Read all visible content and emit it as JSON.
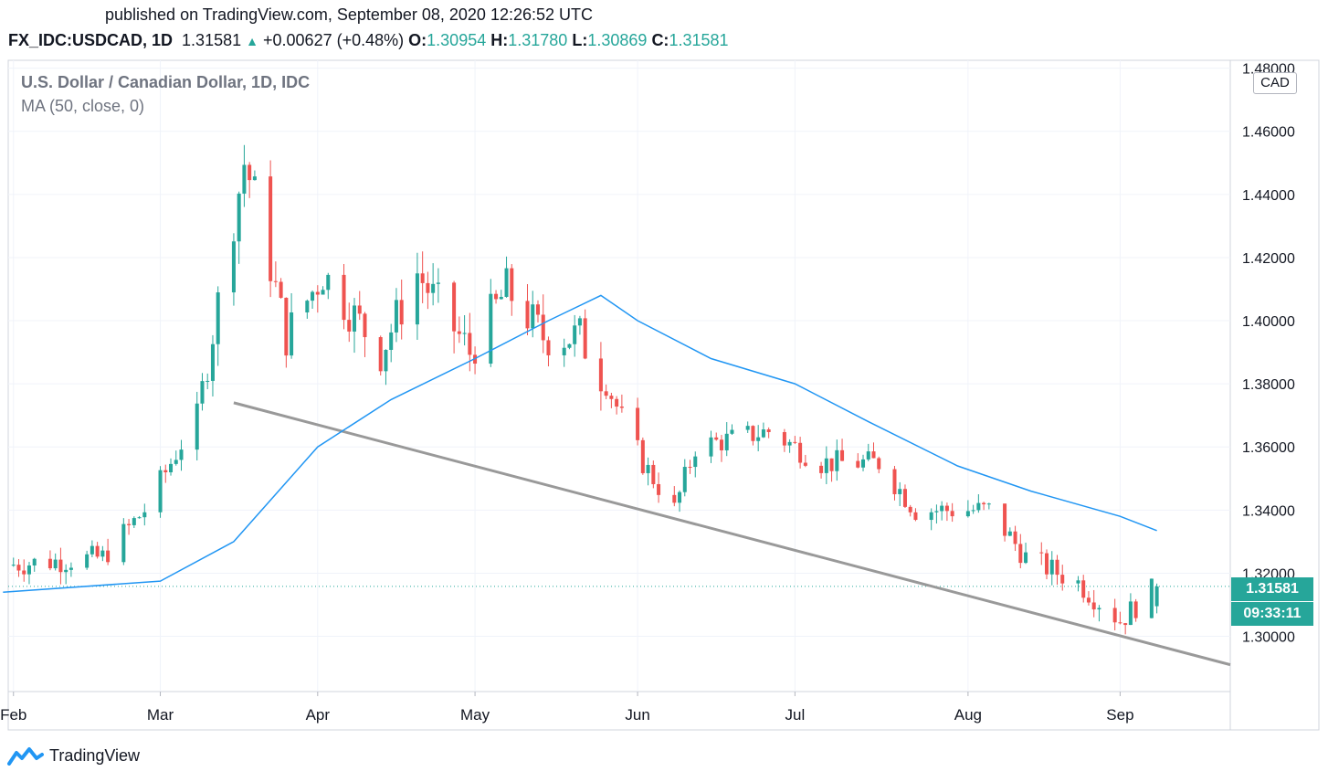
{
  "header": {
    "published": "published on TradingView.com, September 08, 2020 12:26:52 UTC",
    "symbol": "FX_IDC:USDCAD, 1D",
    "last": "1.31581",
    "change": "+0.00627 (+0.48%)",
    "o_label": "O:",
    "o_value": "1.30954",
    "h_label": "H:",
    "h_value": "1.31780",
    "l_label": "L:",
    "l_value": "1.30869",
    "c_label": "C:",
    "c_value": "1.31581",
    "up_arrow": "▲"
  },
  "legend": {
    "title": "U.S. Dollar / Canadian Dollar, 1D, IDC",
    "indicator": "MA (50, close, 0)"
  },
  "currency_badge": "CAD",
  "price_tag": {
    "price": "1.31581",
    "countdown": "09:33:11"
  },
  "brand": "TradingView",
  "colors": {
    "up": "#26a69a",
    "down": "#ef5350",
    "ma": "#2196f3",
    "trendline": "#999999",
    "grid": "#f0f3fa"
  },
  "chart_data": {
    "type": "candlestick",
    "y_ticks": [
      "1.30000",
      "1.32000",
      "1.34000",
      "1.36000",
      "1.38000",
      "1.40000",
      "1.42000",
      "1.44000",
      "1.46000",
      "1.48000"
    ],
    "ylim": [
      1.2825,
      1.4825
    ],
    "x_ticks": [
      "Feb",
      "Mar",
      "Apr",
      "May",
      "Jun",
      "Jul",
      "Aug",
      "Sep"
    ],
    "x_tick_dates": [
      "2020-02-03",
      "2020-03-02",
      "2020-04-01",
      "2020-05-01",
      "2020-06-01",
      "2020-07-01",
      "2020-08-03",
      "2020-09-01"
    ],
    "xlim": [
      "2020-02-02",
      "2020-09-22"
    ],
    "last_price": 1.31581,
    "series": [
      {
        "name": "USDCAD",
        "kind": "ohlc",
        "anchors": [
          {
            "date": "2020-02-01",
            "close": 1.3225
          },
          {
            "date": "2020-02-20",
            "close": 1.325
          },
          {
            "date": "2020-02-28",
            "close": 1.34
          },
          {
            "date": "2020-03-09",
            "close": 1.37
          },
          {
            "date": "2020-03-18",
            "close": 1.45
          },
          {
            "date": "2020-03-20",
            "close": 1.44
          },
          {
            "date": "2020-03-26",
            "close": 1.395
          },
          {
            "date": "2020-04-02",
            "close": 1.415
          },
          {
            "date": "2020-04-13",
            "close": 1.39
          },
          {
            "date": "2020-04-20",
            "close": 1.415
          },
          {
            "date": "2020-04-30",
            "close": 1.39
          },
          {
            "date": "2020-05-07",
            "close": 1.41
          },
          {
            "date": "2020-05-14",
            "close": 1.395
          },
          {
            "date": "2020-05-21",
            "close": 1.395
          },
          {
            "date": "2020-05-26",
            "close": 1.38
          },
          {
            "date": "2020-06-02",
            "close": 1.355
          },
          {
            "date": "2020-06-08",
            "close": 1.34
          },
          {
            "date": "2020-06-12",
            "close": 1.36
          },
          {
            "date": "2020-06-26",
            "close": 1.365
          },
          {
            "date": "2020-07-06",
            "close": 1.355
          },
          {
            "date": "2020-07-17",
            "close": 1.355
          },
          {
            "date": "2020-07-24",
            "close": 1.34
          },
          {
            "date": "2020-07-31",
            "close": 1.34
          },
          {
            "date": "2020-08-07",
            "close": 1.34
          },
          {
            "date": "2020-08-14",
            "close": 1.325
          },
          {
            "date": "2020-08-24",
            "close": 1.317
          },
          {
            "date": "2020-09-01",
            "close": 1.305
          },
          {
            "date": "2020-09-08",
            "close": 1.31581
          }
        ]
      },
      {
        "name": "MA (50, close, 0)",
        "kind": "line",
        "points": [
          {
            "date": "2020-02-01",
            "value": 1.314
          },
          {
            "date": "2020-03-02",
            "value": 1.3175
          },
          {
            "date": "2020-03-16",
            "value": 1.33
          },
          {
            "date": "2020-04-01",
            "value": 1.36
          },
          {
            "date": "2020-04-15",
            "value": 1.375
          },
          {
            "date": "2020-05-01",
            "value": 1.388
          },
          {
            "date": "2020-05-15",
            "value": 1.4
          },
          {
            "date": "2020-05-25",
            "value": 1.408
          },
          {
            "date": "2020-06-01",
            "value": 1.4
          },
          {
            "date": "2020-06-15",
            "value": 1.388
          },
          {
            "date": "2020-07-01",
            "value": 1.38
          },
          {
            "date": "2020-07-15",
            "value": 1.368
          },
          {
            "date": "2020-08-01",
            "value": 1.354
          },
          {
            "date": "2020-08-15",
            "value": 1.346
          },
          {
            "date": "2020-09-01",
            "value": 1.338
          },
          {
            "date": "2020-09-08",
            "value": 1.3335
          }
        ]
      },
      {
        "name": "trendline",
        "kind": "line",
        "points": [
          {
            "date": "2020-03-16",
            "value": 1.374
          },
          {
            "date": "2020-09-22",
            "value": 1.291
          }
        ]
      }
    ]
  }
}
